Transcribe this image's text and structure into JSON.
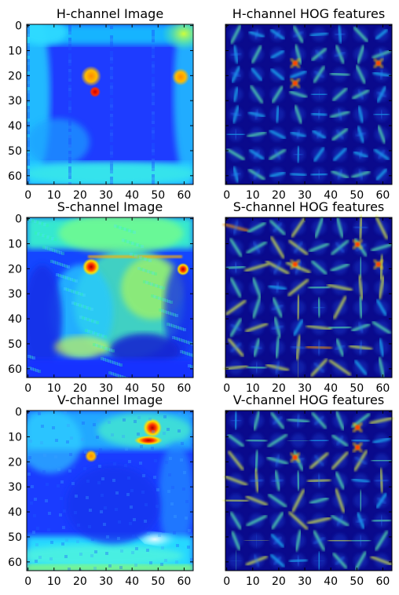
{
  "figure": {
    "panels": [
      {
        "id": "h-img",
        "title": "H-channel Image",
        "kind": "image",
        "channel": "H",
        "x_ticks": [
          "0",
          "10",
          "20",
          "30",
          "40",
          "50",
          "60"
        ],
        "y_ticks": [
          "0",
          "10",
          "20",
          "30",
          "40",
          "50",
          "60"
        ]
      },
      {
        "id": "h-hog",
        "title": "H-channel HOG features",
        "kind": "hog",
        "channel": "H",
        "x_ticks": [
          "0",
          "10",
          "20",
          "30",
          "40",
          "50",
          "60"
        ],
        "y_ticks": [
          "0",
          "10",
          "20",
          "30",
          "40",
          "50",
          "60"
        ]
      },
      {
        "id": "s-img",
        "title": "S-channel Image",
        "kind": "image",
        "channel": "S",
        "x_ticks": [
          "0",
          "10",
          "20",
          "30",
          "40",
          "50",
          "60"
        ],
        "y_ticks": [
          "0",
          "10",
          "20",
          "30",
          "40",
          "50",
          "60"
        ]
      },
      {
        "id": "s-hog",
        "title": "S-channel HOG features",
        "kind": "hog",
        "channel": "S",
        "x_ticks": [
          "0",
          "10",
          "20",
          "30",
          "40",
          "50",
          "60"
        ],
        "y_ticks": [
          "0",
          "10",
          "20",
          "30",
          "40",
          "50",
          "60"
        ]
      },
      {
        "id": "v-img",
        "title": "V-channel Image",
        "kind": "image",
        "channel": "V",
        "x_ticks": [
          "0",
          "10",
          "20",
          "30",
          "40",
          "50",
          "60"
        ],
        "y_ticks": [
          "0",
          "10",
          "20",
          "30",
          "40",
          "50",
          "60"
        ]
      },
      {
        "id": "v-hog",
        "title": "V-channel HOG features",
        "kind": "hog",
        "channel": "V",
        "x_ticks": [
          "0",
          "10",
          "20",
          "30",
          "40",
          "50",
          "60"
        ],
        "y_ticks": [
          "0",
          "10",
          "20",
          "30",
          "40",
          "50",
          "60"
        ]
      }
    ],
    "colormap": "jet"
  }
}
